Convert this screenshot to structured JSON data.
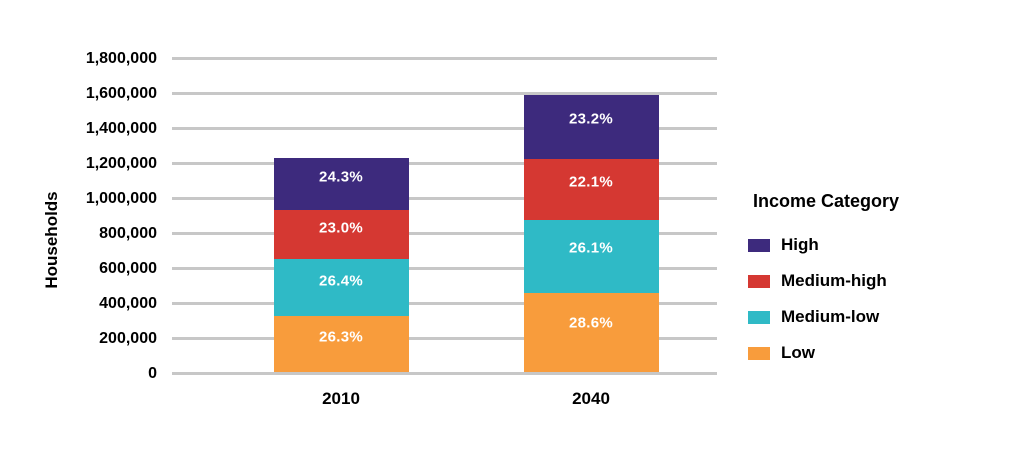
{
  "chart_data": {
    "type": "bar",
    "stacked": true,
    "title": "",
    "xlabel": "",
    "ylabel": "Households",
    "categories": [
      "2010",
      "2040"
    ],
    "ylim": [
      0,
      1800000
    ],
    "grid": true,
    "yticks": [
      {
        "value": 0,
        "label": "0"
      },
      {
        "value": 200000,
        "label": "200,000"
      },
      {
        "value": 400000,
        "label": "400,000"
      },
      {
        "value": 600000,
        "label": "600,000"
      },
      {
        "value": 800000,
        "label": "800,000"
      },
      {
        "value": 1000000,
        "label": "1,000,000"
      },
      {
        "value": 1200000,
        "label": "1,200,000"
      },
      {
        "value": 1400000,
        "label": "1,400,000"
      },
      {
        "value": 1600000,
        "label": "1,600,000"
      },
      {
        "value": 1800000,
        "label": "1,800,000"
      }
    ],
    "totals_estimated": [
      1225000,
      1585000
    ],
    "series": [
      {
        "name": "High",
        "color": "#3D2A7D",
        "percent": [
          24.3,
          23.2
        ],
        "labels": [
          "24.3%",
          "23.2%"
        ],
        "values_estimated": [
          298000,
          368000
        ]
      },
      {
        "name": "Medium-high",
        "color": "#D53832",
        "percent": [
          23.0,
          22.1
        ],
        "labels": [
          "23.0%",
          "22.1%"
        ],
        "values_estimated": [
          282000,
          350000
        ]
      },
      {
        "name": "Medium-low",
        "color": "#2FBAC6",
        "percent": [
          26.4,
          26.1
        ],
        "labels": [
          "26.4%",
          "26.1%"
        ],
        "values_estimated": [
          323000,
          414000
        ]
      },
      {
        "name": "Low",
        "color": "#F89C3C",
        "percent": [
          26.3,
          28.6
        ],
        "labels": [
          "26.3%",
          "28.6%"
        ],
        "values_estimated": [
          322000,
          453000
        ]
      }
    ],
    "legend": {
      "title": "Income Category",
      "position": "right",
      "items": [
        "High",
        "Medium-high",
        "Medium-low",
        "Low"
      ]
    },
    "colors": {
      "gridline": "#C7C7C7",
      "axis_text": "#000000",
      "bar_label_text": "#FFFFFF",
      "background": "#FFFFFF"
    }
  }
}
